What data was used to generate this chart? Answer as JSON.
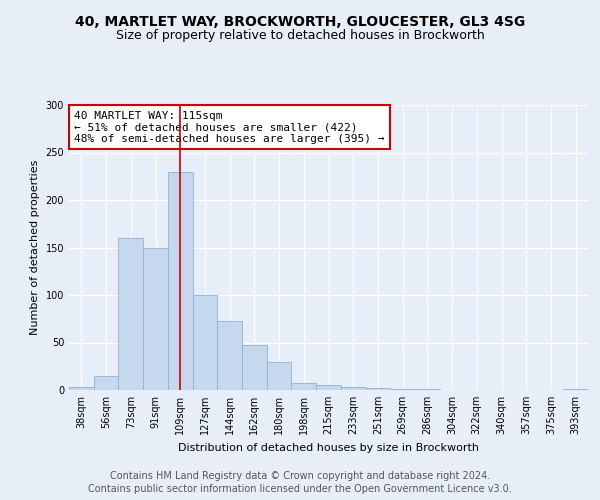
{
  "title_line1": "40, MARTLET WAY, BROCKWORTH, GLOUCESTER, GL3 4SG",
  "title_line2": "Size of property relative to detached houses in Brockworth",
  "xlabel": "Distribution of detached houses by size in Brockworth",
  "ylabel": "Number of detached properties",
  "categories": [
    "38sqm",
    "56sqm",
    "73sqm",
    "91sqm",
    "109sqm",
    "127sqm",
    "144sqm",
    "162sqm",
    "180sqm",
    "198sqm",
    "215sqm",
    "233sqm",
    "251sqm",
    "269sqm",
    "286sqm",
    "304sqm",
    "322sqm",
    "340sqm",
    "357sqm",
    "375sqm",
    "393sqm"
  ],
  "values": [
    3,
    15,
    160,
    150,
    230,
    100,
    73,
    47,
    30,
    7,
    5,
    3,
    2,
    1,
    1,
    0,
    0,
    0,
    0,
    0,
    1
  ],
  "bar_color": "#c5d8ed",
  "bar_edge_color": "#8ab4d4",
  "annotation_box_text": "40 MARTLET WAY: 115sqm\n← 51% of detached houses are smaller (422)\n48% of semi-detached houses are larger (395) →",
  "annotation_box_facecolor": "white",
  "annotation_box_edgecolor": "#cc0000",
  "vline_color": "#cc0000",
  "vline_x": 4,
  "ylim": [
    0,
    300
  ],
  "yticks": [
    0,
    50,
    100,
    150,
    200,
    250,
    300
  ],
  "background_color": "#e8eef8",
  "plot_bg_color": "#e8eef8",
  "grid_color": "#ffffff",
  "title_fontsize": 10,
  "subtitle_fontsize": 9,
  "annotation_fontsize": 8,
  "axis_label_fontsize": 8,
  "tick_fontsize": 7,
  "footer_fontsize": 7,
  "footer_line1": "Contains HM Land Registry data © Crown copyright and database right 2024.",
  "footer_line2": "Contains public sector information licensed under the Open Government Licence v3.0."
}
